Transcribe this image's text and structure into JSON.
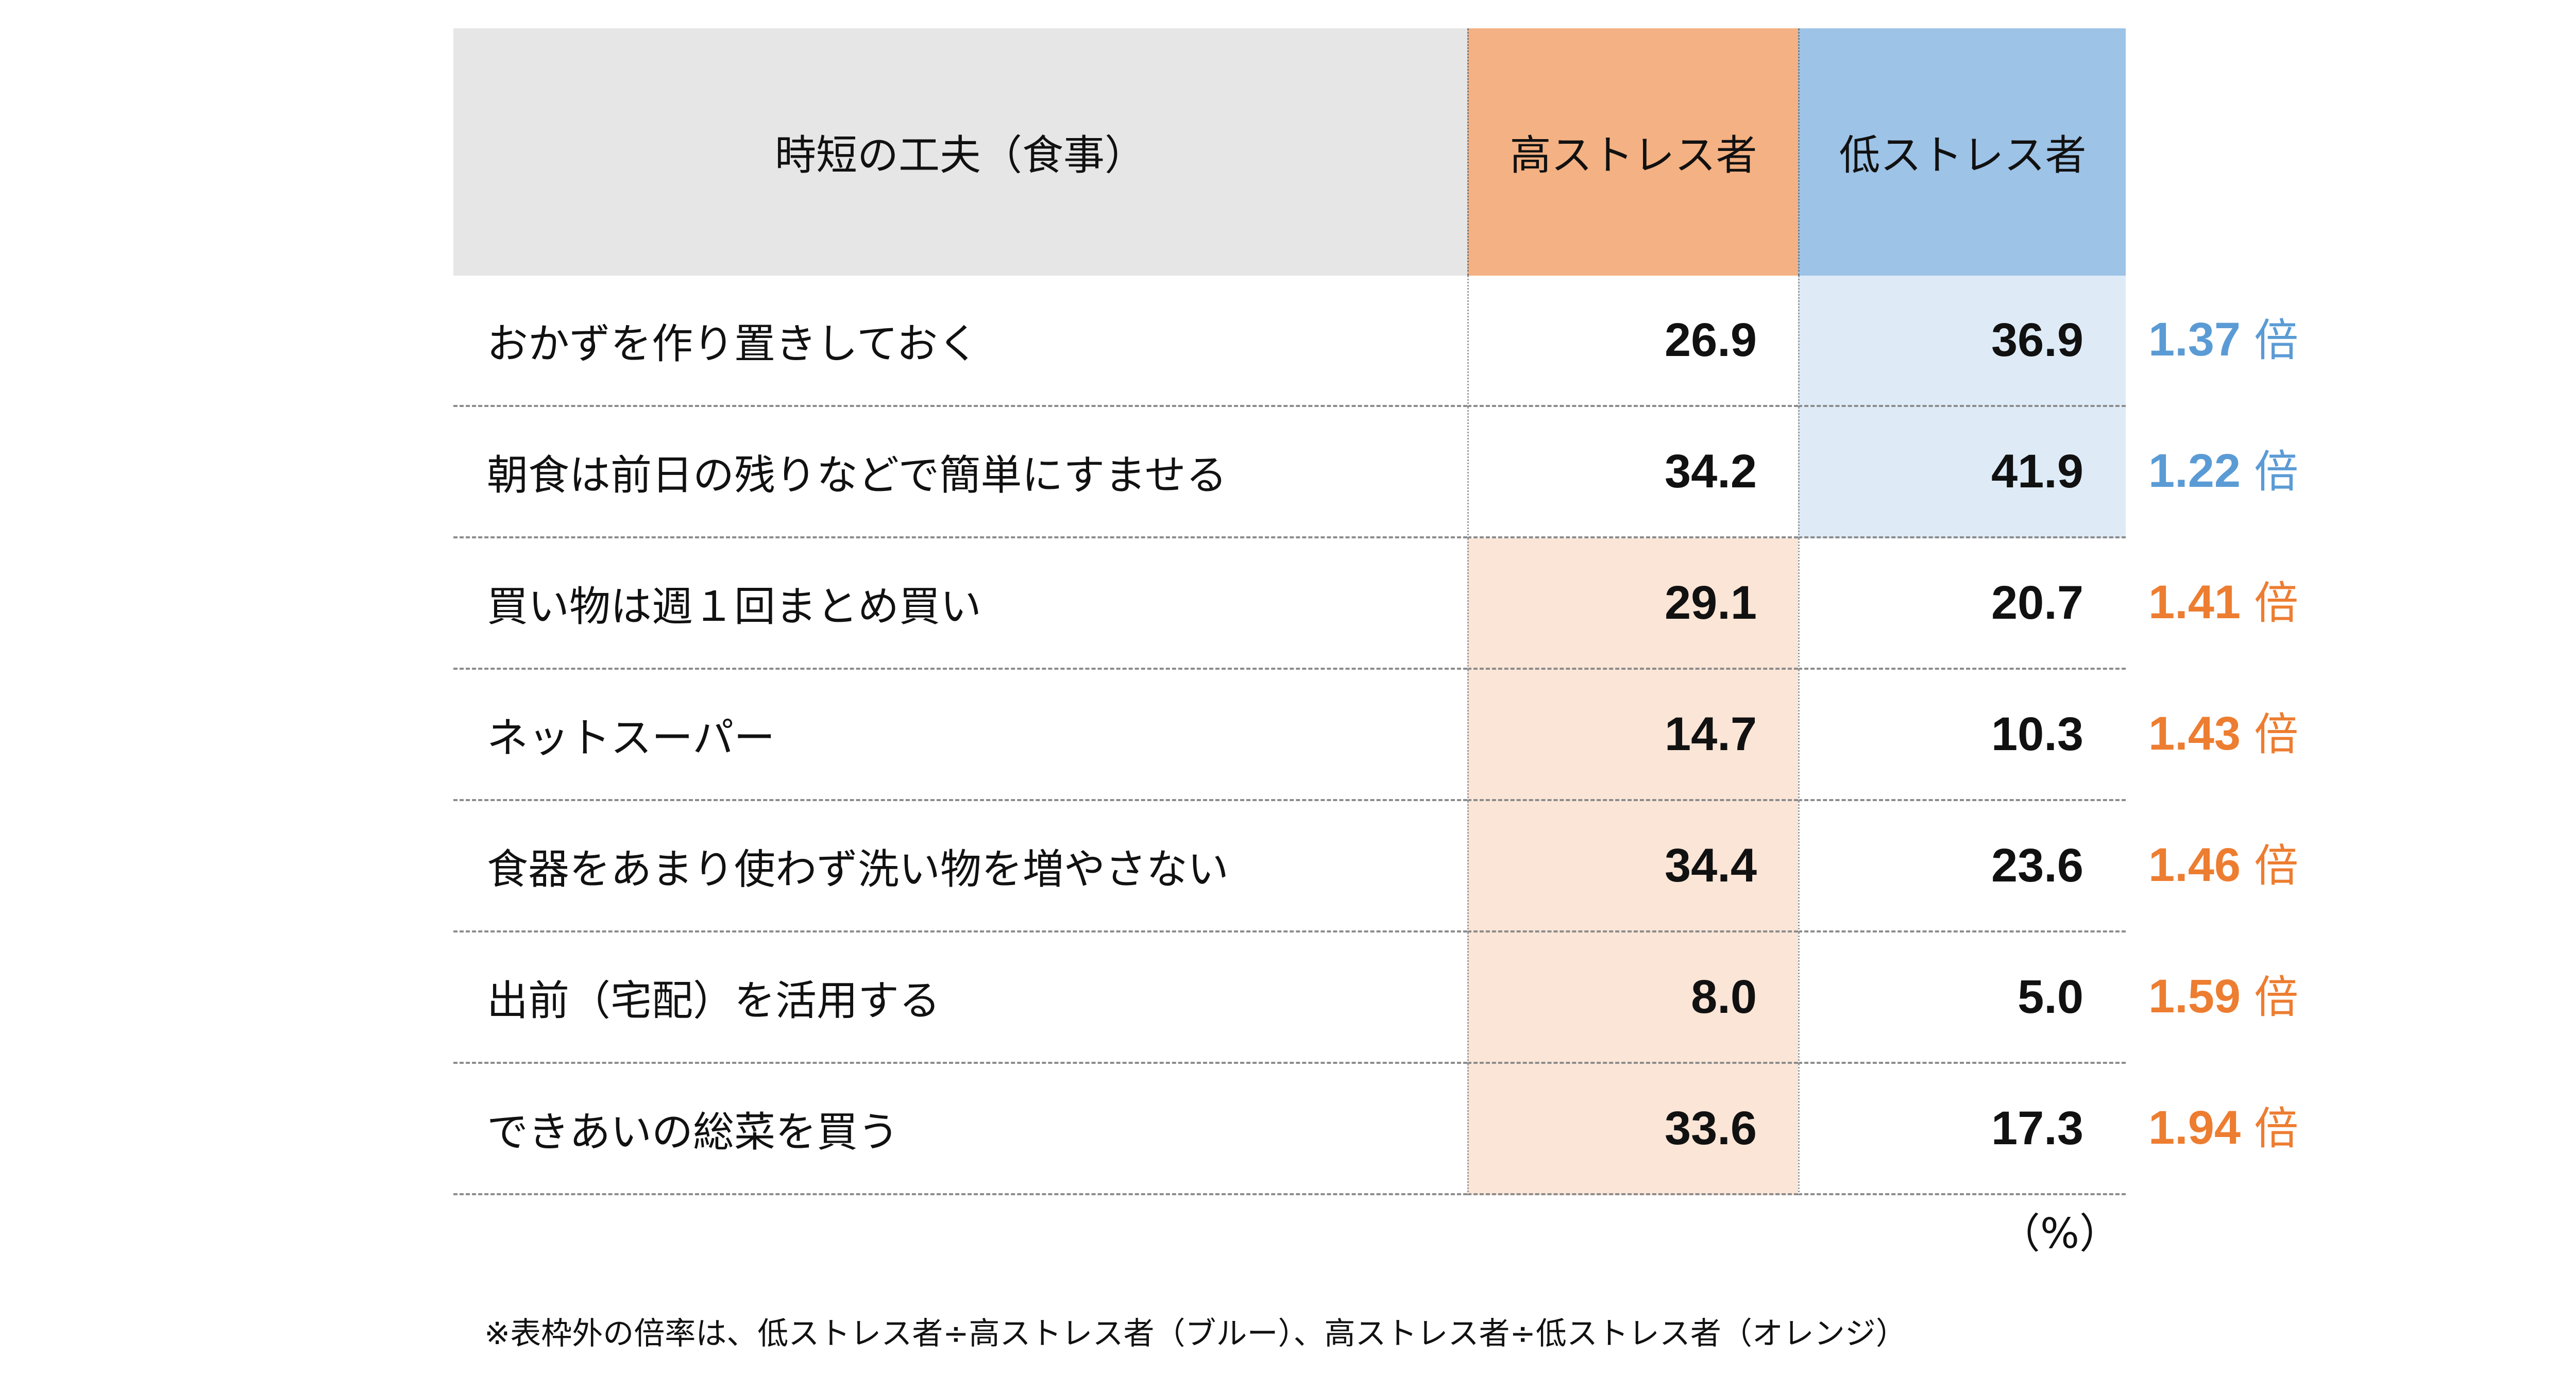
{
  "colors": {
    "header_label_bg": "#e6e6e6",
    "header_high_bg": "#f4b183",
    "header_low_bg": "#9dc3e6",
    "highlight_high": "#fbe5d6",
    "highlight_low": "#deebf7",
    "ratio_blue": "#5b9bd5",
    "ratio_orange": "#ed7d31"
  },
  "table": {
    "header": {
      "label": "時短の工夫（食事）",
      "high": "高ストレス者",
      "low": "低ストレス者"
    },
    "rows": [
      {
        "label": "おかずを作り置きしておく",
        "high": "26.9",
        "low": "36.9",
        "ratio": "1.37",
        "ratio_suffix": "倍",
        "highlight": "low"
      },
      {
        "label": "朝食は前日の残りなどで簡単にすませる",
        "high": "34.2",
        "low": "41.9",
        "ratio": "1.22",
        "ratio_suffix": "倍",
        "highlight": "low"
      },
      {
        "label": "買い物は週１回まとめ買い",
        "high": "29.1",
        "low": "20.7",
        "ratio": "1.41",
        "ratio_suffix": "倍",
        "highlight": "high"
      },
      {
        "label": "ネットスーパー",
        "high": "14.7",
        "low": "10.3",
        "ratio": "1.43",
        "ratio_suffix": "倍",
        "highlight": "high"
      },
      {
        "label": "食器をあまり使わず洗い物を増やさない",
        "high": "34.4",
        "low": "23.6",
        "ratio": "1.46",
        "ratio_suffix": "倍",
        "highlight": "high"
      },
      {
        "label": "出前（宅配）を活用する",
        "high": "8.0",
        "low": "5.0",
        "ratio": "1.59",
        "ratio_suffix": "倍",
        "highlight": "high"
      },
      {
        "label": "できあいの総菜を買う",
        "high": "33.6",
        "low": "17.3",
        "ratio": "1.94",
        "ratio_suffix": "倍",
        "highlight": "high"
      }
    ]
  },
  "unit": "（%）",
  "note": "※表枠外の倍率は、低ストレス者÷高ストレス者（ブルー）、高ストレス者÷低ストレス者（オレンジ）"
}
